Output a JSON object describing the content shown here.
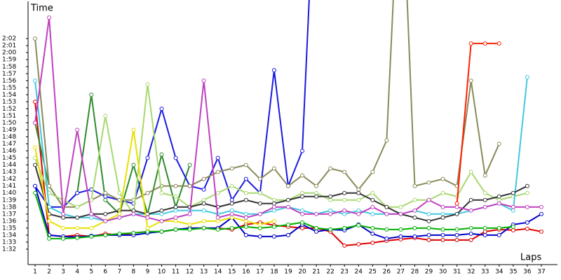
{
  "chart_data": {
    "type": "line",
    "ylabel": "Time",
    "xlabel": "Laps",
    "x": [
      1,
      2,
      3,
      4,
      5,
      6,
      7,
      8,
      9,
      10,
      11,
      12,
      13,
      14,
      15,
      16,
      17,
      18,
      19,
      20,
      21,
      22,
      23,
      24,
      25,
      26,
      27,
      28,
      29,
      30,
      31,
      32,
      33,
      34,
      35,
      36,
      37
    ],
    "xlim": [
      0.5,
      37.65
    ],
    "ylim": [
      89.8,
      127.5
    ],
    "xticks": [
      1,
      2,
      3,
      4,
      5,
      6,
      7,
      8,
      9,
      10,
      11,
      12,
      13,
      14,
      15,
      16,
      17,
      18,
      19,
      20,
      21,
      22,
      23,
      24,
      25,
      26,
      27,
      28,
      29,
      30,
      31,
      32,
      33,
      34,
      35,
      36,
      37
    ],
    "yticks": [
      {
        "value": 92,
        "label": "1:32"
      },
      {
        "value": 93,
        "label": "1:33"
      },
      {
        "value": 94,
        "label": "1:34"
      },
      {
        "value": 95,
        "label": "1:35"
      },
      {
        "value": 96,
        "label": "1:36"
      },
      {
        "value": 97,
        "label": "1:37"
      },
      {
        "value": 98,
        "label": "1:38"
      },
      {
        "value": 99,
        "label": "1:39"
      },
      {
        "value": 100,
        "label": "1:40"
      },
      {
        "value": 101,
        "label": "1:41"
      },
      {
        "value": 102,
        "label": "1:42"
      },
      {
        "value": 103,
        "label": "1:43"
      },
      {
        "value": 104,
        "label": "1:44"
      },
      {
        "value": 105,
        "label": "1:45"
      },
      {
        "value": 106,
        "label": "1:46"
      },
      {
        "value": 107,
        "label": "1:47"
      },
      {
        "value": 108,
        "label": "1:48"
      },
      {
        "value": 109,
        "label": "1:49"
      },
      {
        "value": 110,
        "label": "1:50"
      },
      {
        "value": 111,
        "label": "1:51"
      },
      {
        "value": 112,
        "label": "1:52"
      },
      {
        "value": 113,
        "label": "1:53"
      },
      {
        "value": 114,
        "label": "1:54"
      },
      {
        "value": 115,
        "label": "1:55"
      },
      {
        "value": 116,
        "label": "1:56"
      },
      {
        "value": 117,
        "label": "1:57"
      },
      {
        "value": 118,
        "label": "1:58"
      },
      {
        "value": 119,
        "label": "1:59"
      },
      {
        "value": 120,
        "label": "2:00"
      },
      {
        "value": 121,
        "label": "2:01"
      },
      {
        "value": 122,
        "label": "2:02"
      }
    ],
    "grid": false,
    "series": [
      {
        "color": "#e00000",
        "values": [
          113,
          94,
          93.8,
          94,
          93.8,
          94.2,
          94,
          94.3,
          94.5,
          94.5,
          94.8,
          95,
          95,
          95,
          94.8,
          95.5,
          95.8,
          95.4,
          95.2,
          95,
          95,
          94.5,
          92.5,
          92.7,
          92.9,
          93.2,
          93.4,
          93.6,
          93.3,
          93.3,
          93.3,
          93.3,
          94.5,
          94.8,
          94.7,
          94.9,
          94.5
        ]
      },
      {
        "color": "#0000c8",
        "values": [
          101,
          94,
          93.8,
          93.7,
          93.9,
          94,
          94,
          94,
          94.3,
          94.5,
          94.8,
          95,
          95,
          95,
          96.5,
          94,
          93.8,
          93.8,
          94,
          95.5,
          94.5,
          94.8,
          94.7,
          95.5,
          94.2,
          93.5,
          93.8,
          93.8,
          94,
          94,
          94,
          94.2,
          94,
          94,
          95.5,
          95.8,
          97
        ]
      },
      {
        "color": "#00b000",
        "values": [
          100,
          93.5,
          93.5,
          93.6,
          93.8,
          94,
          94.2,
          94.3,
          94.5,
          94.5,
          94.8,
          94.8,
          95,
          94.8,
          95,
          95.2,
          95,
          95.2,
          95.5,
          95.8,
          95,
          94.8,
          95,
          95.4,
          95,
          94.8,
          94.8,
          95,
          95,
          94.8,
          94.8,
          95,
          95,
          95,
          95.2,
          null,
          null
        ]
      },
      {
        "color": "#2e8b2e",
        "values": [
          110,
          101,
          98,
          100,
          114,
          99,
          97,
          104,
          97,
          105.5,
          98,
          104,
          null,
          null,
          null,
          null,
          null,
          null,
          null,
          null,
          null,
          null,
          null,
          null,
          null,
          null,
          null,
          null,
          null,
          null,
          null,
          null,
          null,
          null,
          null,
          null,
          null
        ]
      },
      {
        "color": "#1a1ae0",
        "values": [
          101,
          98,
          98,
          100,
          100.5,
          99.5,
          99,
          98.5,
          105,
          112,
          105,
          101,
          100.5,
          105,
          99,
          102,
          100,
          117.5,
          101,
          106,
          150,
          null,
          null,
          null,
          null,
          null,
          null,
          null,
          null,
          null,
          null,
          null,
          null,
          null,
          null,
          null,
          null
        ]
      },
      {
        "color": "#8a8a5a",
        "values": [
          122,
          101,
          98,
          98,
          99,
          100,
          99,
          99,
          100,
          101,
          101,
          101,
          102,
          103,
          103.5,
          104,
          102,
          103.5,
          101,
          102.5,
          101,
          103.5,
          103,
          100.5,
          103,
          107.5,
          150,
          101,
          101.5,
          102,
          101,
          116,
          102.5,
          107,
          null,
          null,
          null
        ]
      },
      {
        "color": "#a8d870",
        "values": [
          105,
          100,
          99,
          98,
          99,
          111,
          100,
          97,
          115.5,
          100,
          99.5,
          98,
          99,
          100,
          101,
          100,
          100,
          99,
          99,
          100,
          100,
          99,
          99,
          99,
          100,
          98,
          98,
          99,
          99,
          100,
          99.5,
          103,
          100,
          99,
          99.5,
          100,
          null
        ]
      },
      {
        "color": "#40c8e0",
        "values": [
          116,
          98,
          97,
          96.5,
          96.5,
          96,
          96.5,
          97,
          97,
          97,
          97.5,
          97.5,
          97.5,
          97,
          97.5,
          97,
          97,
          97.5,
          98,
          97.5,
          97,
          97.5,
          97,
          97.5,
          97,
          97,
          97,
          97.5,
          97,
          97,
          97,
          97.5,
          98,
          98.5,
          97.5,
          116.5,
          null
        ]
      },
      {
        "color": "#333333",
        "values": [
          104,
          97,
          96.5,
          96.5,
          97,
          97,
          97.5,
          97.5,
          97,
          97.5,
          98,
          98,
          98.5,
          98,
          98.5,
          99,
          98.5,
          98.5,
          99,
          99.5,
          99.5,
          99.5,
          100,
          100,
          99,
          98,
          97,
          96.5,
          96,
          96.5,
          97,
          99,
          99,
          99.5,
          100,
          101,
          null
        ]
      },
      {
        "color": "#e8e000",
        "values": [
          106.5,
          96,
          95,
          95,
          95,
          96,
          97,
          109,
          95,
          96,
          96,
          95.5,
          96,
          96,
          96.5,
          96,
          95.5,
          96,
          null,
          null,
          null,
          null,
          null,
          null,
          null,
          null,
          null,
          null,
          null,
          null,
          null,
          null,
          null,
          null,
          null,
          null,
          null
        ]
      },
      {
        "color": "#c040c0",
        "values": [
          110,
          125,
          97,
          109,
          97,
          96,
          96.5,
          97,
          96.5,
          96,
          96.5,
          97,
          116,
          96.5,
          97,
          96.5,
          97,
          98,
          98,
          97,
          97,
          97,
          97.5,
          97,
          98,
          97,
          97,
          97.5,
          99,
          98,
          98,
          97.5,
          98,
          98.5,
          98,
          98,
          98
        ]
      },
      {
        "color": "#ff2000",
        "values": [
          null,
          null,
          null,
          null,
          null,
          null,
          null,
          null,
          null,
          null,
          null,
          null,
          null,
          null,
          null,
          null,
          null,
          null,
          null,
          null,
          null,
          null,
          null,
          null,
          null,
          null,
          null,
          null,
          null,
          null,
          98.5,
          121.3,
          121.3,
          121.3,
          null,
          null,
          null
        ]
      }
    ]
  }
}
